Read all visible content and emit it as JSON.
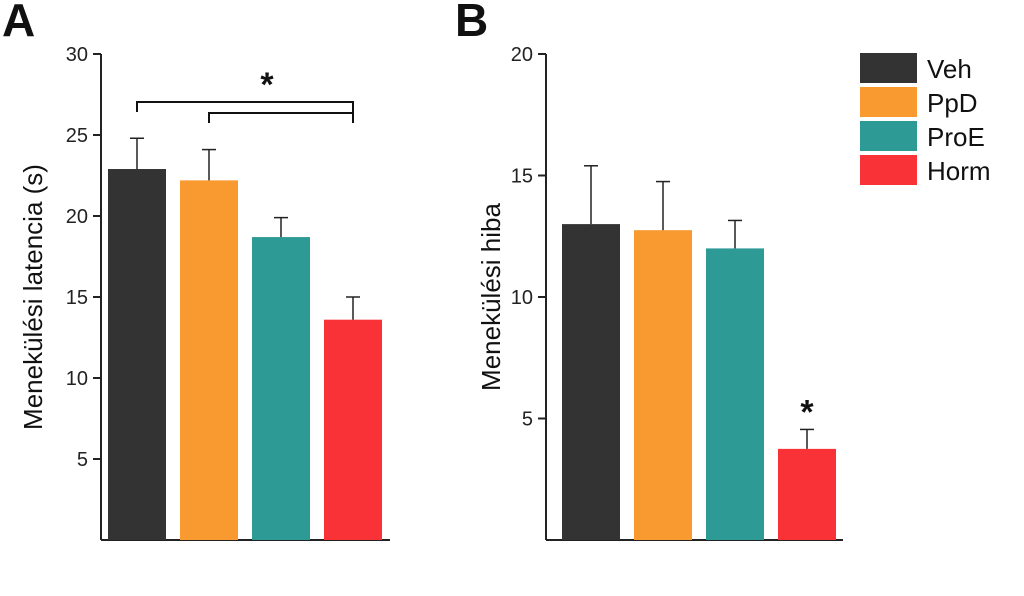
{
  "chart_data": [
    {
      "type": "bar",
      "panel": "A",
      "ylabel": "Menekülési latencia (s)",
      "ylim": [
        0,
        30
      ],
      "yticks": [
        5,
        10,
        15,
        20,
        25,
        30
      ],
      "categories": [
        "Veh",
        "PpD",
        "ProE",
        "Horm"
      ],
      "values": [
        22.9,
        22.2,
        18.7,
        13.6
      ],
      "errors": [
        1.9,
        1.9,
        1.2,
        1.4
      ],
      "significance": {
        "marker": "*",
        "bracket_from": "Veh",
        "bracket_inner_from": "PpD",
        "bracket_to": "Horm"
      }
    },
    {
      "type": "bar",
      "panel": "B",
      "ylabel": "Menekülési hiba",
      "ylim": [
        0,
        20
      ],
      "yticks": [
        5,
        10,
        15,
        20
      ],
      "categories": [
        "Veh",
        "PpD",
        "ProE",
        "Horm"
      ],
      "values": [
        13.0,
        12.75,
        12.0,
        3.75
      ],
      "errors": [
        2.4,
        2.0,
        1.15,
        0.8
      ],
      "significance": {
        "marker": "*",
        "over": "Horm"
      }
    }
  ],
  "legend": [
    {
      "label": "Veh",
      "color": "#333333"
    },
    {
      "label": "PpD",
      "color": "#f99a30"
    },
    {
      "label": "ProE",
      "color": "#2e9a96"
    },
    {
      "label": "Horm",
      "color": "#f93237"
    }
  ]
}
